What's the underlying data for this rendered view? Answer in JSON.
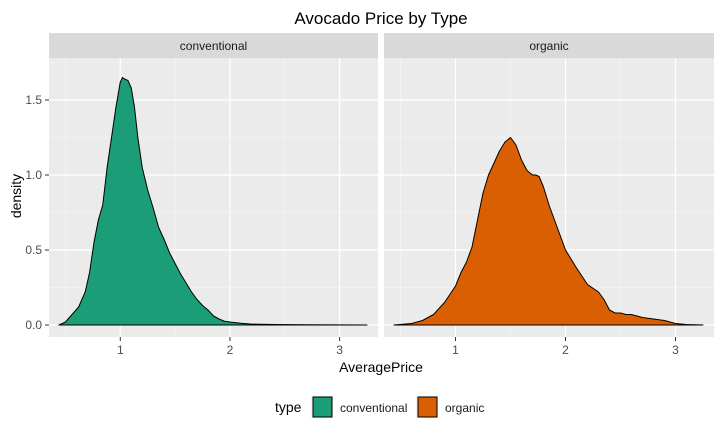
{
  "chart_data": {
    "type": "area",
    "title": "Avocado Price by Type",
    "xlabel": "AveragePrice",
    "ylabel": "density",
    "xlim": [
      0.35,
      3.35
    ],
    "ylim": [
      -0.08,
      1.78
    ],
    "x_ticks": [
      1,
      2,
      3
    ],
    "x_tick_labels": [
      "1",
      "2",
      "3"
    ],
    "y_ticks": [
      0.0,
      0.5,
      1.0,
      1.5
    ],
    "y_tick_labels": [
      "0.0",
      "0.5",
      "1.0",
      "1.5"
    ],
    "grid": true,
    "legend": {
      "title": "type",
      "position": "bottom"
    },
    "series": [
      {
        "name": "conventional",
        "panel_label": "conventional",
        "color": "#1b9e77",
        "x": [
          0.44,
          0.5,
          0.56,
          0.62,
          0.68,
          0.72,
          0.76,
          0.8,
          0.84,
          0.88,
          0.92,
          0.96,
          1.0,
          1.02,
          1.04,
          1.07,
          1.1,
          1.13,
          1.16,
          1.2,
          1.25,
          1.3,
          1.35,
          1.4,
          1.45,
          1.5,
          1.55,
          1.6,
          1.65,
          1.7,
          1.75,
          1.8,
          1.85,
          1.9,
          1.95,
          2.0,
          2.1,
          2.2,
          2.4,
          2.7,
          3.0,
          3.25
        ],
        "density": [
          0.0,
          0.02,
          0.07,
          0.12,
          0.22,
          0.35,
          0.55,
          0.7,
          0.8,
          1.05,
          1.25,
          1.45,
          1.62,
          1.65,
          1.64,
          1.63,
          1.58,
          1.45,
          1.25,
          1.05,
          0.9,
          0.78,
          0.65,
          0.57,
          0.48,
          0.41,
          0.34,
          0.28,
          0.22,
          0.17,
          0.13,
          0.1,
          0.06,
          0.04,
          0.025,
          0.02,
          0.012,
          0.006,
          0.003,
          0.002,
          0.001,
          0.0
        ]
      },
      {
        "name": "organic",
        "panel_label": "organic",
        "color": "#d95f02",
        "x": [
          0.44,
          0.6,
          0.7,
          0.8,
          0.9,
          1.0,
          1.05,
          1.1,
          1.15,
          1.2,
          1.25,
          1.3,
          1.35,
          1.4,
          1.45,
          1.5,
          1.55,
          1.6,
          1.65,
          1.7,
          1.73,
          1.76,
          1.8,
          1.85,
          1.9,
          2.0,
          2.1,
          2.2,
          2.3,
          2.35,
          2.4,
          2.45,
          2.5,
          2.55,
          2.6,
          2.7,
          2.8,
          2.9,
          3.0,
          3.1,
          3.25
        ],
        "density": [
          0.0,
          0.01,
          0.03,
          0.07,
          0.15,
          0.26,
          0.35,
          0.42,
          0.52,
          0.7,
          0.88,
          1.0,
          1.08,
          1.16,
          1.22,
          1.25,
          1.2,
          1.1,
          1.03,
          1.0,
          1.0,
          0.99,
          0.92,
          0.8,
          0.7,
          0.5,
          0.38,
          0.27,
          0.22,
          0.17,
          0.1,
          0.08,
          0.08,
          0.07,
          0.07,
          0.05,
          0.04,
          0.03,
          0.01,
          0.003,
          0.0
        ]
      }
    ]
  }
}
